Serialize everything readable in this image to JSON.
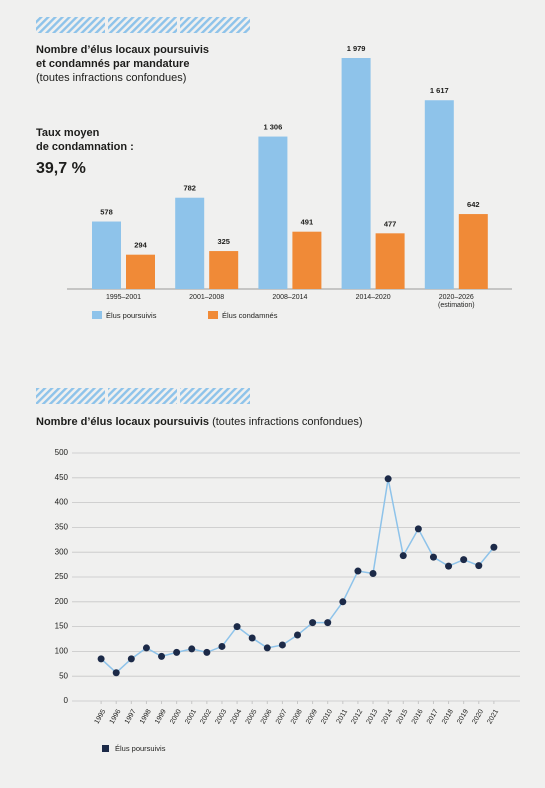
{
  "chart_data": [
    {
      "type": "bar",
      "title": [
        "Nombre d’élus locaux poursuivis",
        "et condamnés par mandature"
      ],
      "subtitle": "(toutes infractions confondues)",
      "annotation": [
        "Taux moyen",
        "de condamnation :",
        "39,7 %"
      ],
      "annotation_color": "#f08a37",
      "categories": [
        "1995–2001",
        "2001–2008",
        "2008–2014",
        "2014–2020",
        "2020–2026\n(estimation)"
      ],
      "series": [
        {
          "name": "Élus poursuivis",
          "color": "#8ec3ea",
          "values": [
            578,
            782,
            1306,
            1979,
            1617
          ],
          "value_labels": [
            "578",
            "782",
            "1 306",
            "1 979",
            "1 617"
          ]
        },
        {
          "name": "Élus condamnés",
          "color": "#f08a37",
          "values": [
            294,
            325,
            491,
            477,
            642
          ]
        }
      ]
    },
    {
      "type": "line",
      "title": "Nombre d’élus locaux poursuivis",
      "subtitle": "(toutes infractions confondues)",
      "x": [
        1995,
        1996,
        1997,
        1998,
        1999,
        2000,
        2001,
        2002,
        2003,
        2004,
        2005,
        2006,
        2007,
        2008,
        2009,
        2010,
        2011,
        2012,
        2013,
        2014,
        2015,
        2016,
        2017,
        2018,
        2019,
        2020,
        2021
      ],
      "series": [
        {
          "name": "Élus poursuivis",
          "color": "#1c2a48",
          "line_color": "#8ec3ea",
          "values": [
            85,
            57,
            85,
            107,
            90,
            98,
            105,
            98,
            110,
            150,
            127,
            107,
            113,
            133,
            158,
            158,
            200,
            262,
            257,
            448,
            293,
            347,
            290,
            272,
            285,
            273,
            310
          ]
        }
      ],
      "xlim": [
        1994,
        2022
      ],
      "xticks": [
        1995,
        1996,
        1997,
        1998,
        1999,
        2000,
        2001,
        2002,
        2003,
        2004,
        2005,
        2006,
        2007,
        2008,
        2009,
        2010,
        2011,
        2012,
        2013,
        2014,
        2015,
        2016,
        2017,
        2018,
        2019,
        2020,
        2021
      ],
      "ylim": [
        0,
        500
      ],
      "yticks": [
        0,
        50,
        100,
        150,
        200,
        250,
        300,
        350,
        400,
        450,
        500
      ],
      "grid": true
    }
  ]
}
